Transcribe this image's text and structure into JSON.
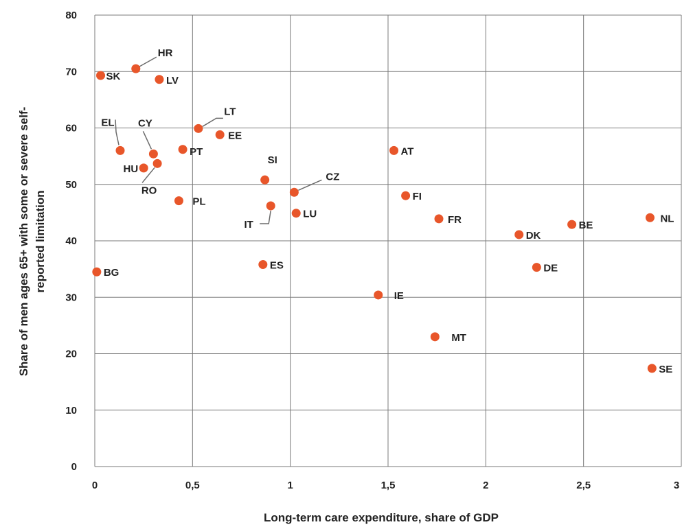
{
  "chart_data": {
    "type": "scatter",
    "title": "",
    "xlabel": "Long-term care expenditure, share of GDP",
    "ylabel_lines": [
      "Share of men ages 65+ with some or severe self-",
      "reported limitation"
    ],
    "xlim": [
      0,
      3
    ],
    "ylim": [
      0,
      80
    ],
    "x_ticks": [
      0,
      0.5,
      1,
      1.5,
      2,
      2.5,
      3
    ],
    "x_tick_labels": [
      "0",
      "0,5",
      "1",
      "1,5",
      "2",
      "2,5",
      "3"
    ],
    "y_ticks": [
      0,
      10,
      20,
      30,
      40,
      50,
      60,
      70,
      80
    ],
    "y_tick_labels": [
      "0",
      "10",
      "20",
      "30",
      "40",
      "50",
      "60",
      "70",
      "80"
    ],
    "grid": true,
    "marker_color": "#E8562A",
    "points": [
      {
        "label": "SK",
        "x": 0.03,
        "y": 69.3
      },
      {
        "label": "HR",
        "x": 0.21,
        "y": 70.5
      },
      {
        "label": "LV",
        "x": 0.33,
        "y": 68.6
      },
      {
        "label": "EL",
        "x": 0.13,
        "y": 56.0
      },
      {
        "label": "CY",
        "x": 0.3,
        "y": 55.4
      },
      {
        "label": "HU",
        "x": 0.25,
        "y": 52.9
      },
      {
        "label": "RO",
        "x": 0.32,
        "y": 53.7
      },
      {
        "label": "PT",
        "x": 0.45,
        "y": 56.2
      },
      {
        "label": "LT",
        "x": 0.53,
        "y": 59.9
      },
      {
        "label": "EE",
        "x": 0.64,
        "y": 58.8
      },
      {
        "label": "PL",
        "x": 0.43,
        "y": 47.1
      },
      {
        "label": "SI",
        "x": 0.87,
        "y": 50.8
      },
      {
        "label": "CZ",
        "x": 1.02,
        "y": 48.6
      },
      {
        "label": "IT",
        "x": 0.9,
        "y": 46.2
      },
      {
        "label": "LU",
        "x": 1.03,
        "y": 44.9
      },
      {
        "label": "ES",
        "x": 0.86,
        "y": 35.8
      },
      {
        "label": "BG",
        "x": 0.01,
        "y": 34.5
      },
      {
        "label": "AT",
        "x": 1.53,
        "y": 56.0
      },
      {
        "label": "FI",
        "x": 1.59,
        "y": 48.0
      },
      {
        "label": "FR",
        "x": 1.76,
        "y": 43.9
      },
      {
        "label": "IE",
        "x": 1.45,
        "y": 30.4
      },
      {
        "label": "MT",
        "x": 1.74,
        "y": 23.0
      },
      {
        "label": "DK",
        "x": 2.17,
        "y": 41.1
      },
      {
        "label": "DE",
        "x": 2.26,
        "y": 35.3
      },
      {
        "label": "BE",
        "x": 2.44,
        "y": 42.9
      },
      {
        "label": "NL",
        "x": 2.84,
        "y": 44.1
      },
      {
        "label": "SE",
        "x": 2.85,
        "y": 17.4
      }
    ]
  }
}
